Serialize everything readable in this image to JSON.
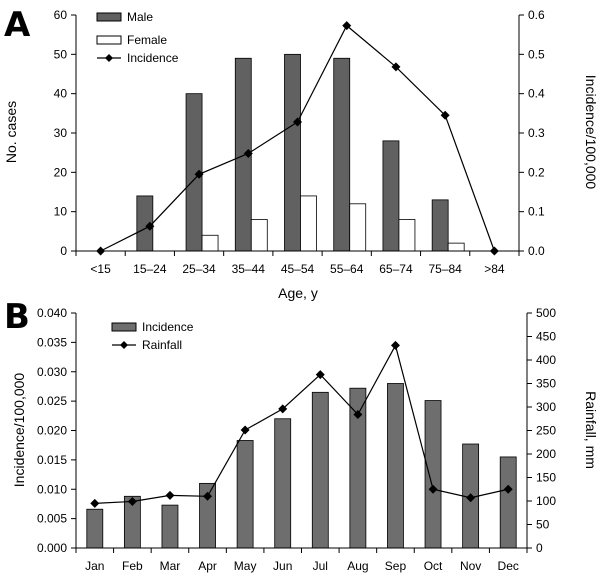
{
  "colors": {
    "male_bar": "#616161",
    "female_bar": "#ffffff",
    "line": "#000000",
    "incidence_bar": "#6e6e6e"
  },
  "chart_data": [
    {
      "panel_label": "A",
      "type": "bar",
      "categories": [
        "<15",
        "15–24",
        "25–34",
        "35–44",
        "45–54",
        "55–64",
        "65–74",
        "75–84",
        ">84"
      ],
      "series": [
        {
          "name": "Male",
          "kind": "bar",
          "axis": "left",
          "values": [
            0,
            14,
            40,
            49,
            50,
            49,
            28,
            13,
            0
          ]
        },
        {
          "name": "Female",
          "kind": "bar",
          "axis": "left",
          "values": [
            0,
            0,
            4,
            8,
            14,
            12,
            8,
            2,
            0
          ]
        },
        {
          "name": "Incidence",
          "kind": "line",
          "marker": "diamond",
          "axis": "right",
          "values": [
            0.0,
            0.063,
            0.195,
            0.248,
            0.328,
            0.573,
            0.468,
            0.345,
            0.0
          ]
        }
      ],
      "xlabel": "Age, y",
      "ylabel": "No. cases",
      "y2label": "Incidence/100,000",
      "ylim": [
        0,
        60
      ],
      "y2lim": [
        0,
        0.6
      ],
      "yticks": [
        "0",
        "10",
        "20",
        "30",
        "40",
        "50",
        "60"
      ],
      "y2ticks": [
        "0.0",
        "0.1",
        "0.2",
        "0.3",
        "0.4",
        "0.5",
        "0.6"
      ],
      "legend": {
        "placement": "top-left",
        "entries": [
          "Male",
          "Female",
          "Incidence"
        ]
      },
      "grid": false
    },
    {
      "panel_label": "B",
      "type": "bar",
      "categories": [
        "Jan",
        "Feb",
        "Mar",
        "Apr",
        "May",
        "Jun",
        "Jul",
        "Aug",
        "Sep",
        "Oct",
        "Nov",
        "Dec"
      ],
      "series": [
        {
          "name": "Incidence",
          "kind": "bar",
          "axis": "left",
          "values": [
            0.0066,
            0.0088,
            0.0073,
            0.011,
            0.0183,
            0.022,
            0.0265,
            0.0272,
            0.028,
            0.0251,
            0.0177,
            0.0155
          ]
        },
        {
          "name": "Rainfall",
          "kind": "line",
          "marker": "diamond",
          "axis": "right",
          "values": [
            95,
            99,
            112,
            110,
            251,
            296,
            369,
            284,
            431,
            125,
            107,
            125
          ]
        }
      ],
      "xlabel": "",
      "ylabel": "Incidence/100,000",
      "y2label": "Rainfall, mm",
      "ylim": [
        0,
        0.04
      ],
      "y2lim": [
        0,
        500
      ],
      "yticks": [
        "0.000",
        "0.005",
        "0.010",
        "0.015",
        "0.020",
        "0.025",
        "0.030",
        "0.035",
        "0.040"
      ],
      "y2ticks": [
        "0",
        "50",
        "100",
        "150",
        "200",
        "250",
        "300",
        "350",
        "400",
        "450",
        "500"
      ],
      "legend": {
        "placement": "top-left",
        "entries": [
          "Incidence",
          "Rainfall"
        ]
      },
      "grid": false
    }
  ]
}
